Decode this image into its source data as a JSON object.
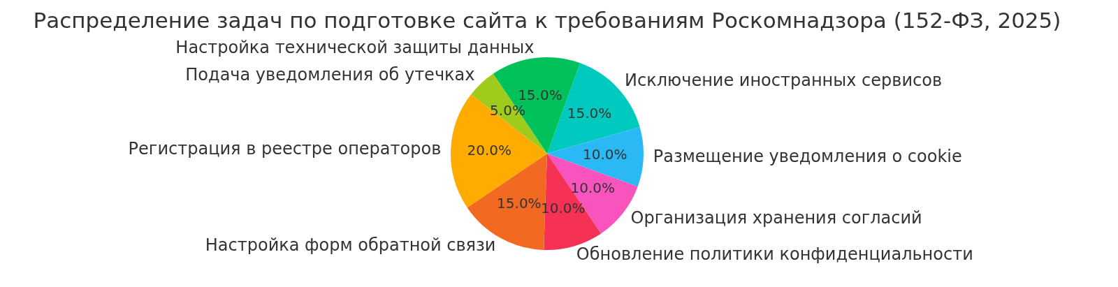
{
  "chart_data": {
    "type": "pie",
    "title": "Распределение задач по подготовке сайта к требованиям Роскомнадзора (152-ФЗ, 2025)",
    "categories": [
      "Исключение иностранных сервисов",
      "Размещение уведомления о cookie",
      "Организация хранения согласий",
      "Обновление политики конфиденциальности",
      "Настройка форм обратной связи",
      "Регистрация в реестре операторов",
      "Подача уведомления об утечках",
      "Настройка технической защиты данных"
    ],
    "values": [
      15,
      10,
      10,
      10,
      15,
      20,
      5,
      15
    ],
    "colors": [
      "#00c9c0",
      "#2bb9f5",
      "#f954bd",
      "#f53256",
      "#f26922",
      "#ffab00",
      "#9ecb1c",
      "#00c15a"
    ],
    "value_labels": [
      "15.0%",
      "10.0%",
      "10.0%",
      "10.0%",
      "15.0%",
      "20.0%",
      "5.0%",
      "15.0%"
    ],
    "legend": false
  }
}
